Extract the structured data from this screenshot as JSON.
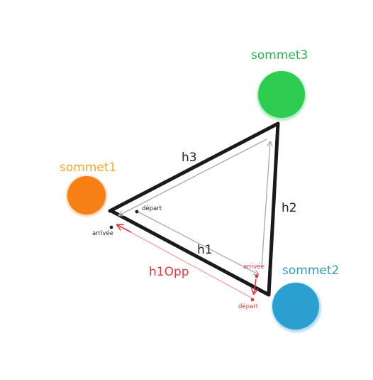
{
  "vertices": [
    {
      "id": "sommet1",
      "label": "sommet1",
      "color": "#f77f14",
      "label_color": "#f5a623"
    },
    {
      "id": "sommet2",
      "label": "sommet2",
      "color": "#2a9fd0",
      "label_color": "#2a9fb8"
    },
    {
      "id": "sommet3",
      "label": "sommet3",
      "color": "#2fcc52",
      "label_color": "#2fb04a"
    }
  ],
  "edges": [
    {
      "id": "h1",
      "label": "h1"
    },
    {
      "id": "h2",
      "label": "h2"
    },
    {
      "id": "h3",
      "label": "h3"
    },
    {
      "id": "h1Opp",
      "label": "h1Opp",
      "color": "#e23a3a"
    }
  ],
  "markers": {
    "start_black": "départ",
    "end_black": "arrivée",
    "start_red": "départ",
    "end_red": "arrivée"
  },
  "colors": {
    "edge": "#1a1a1a",
    "halfedge": "#a8a8a8",
    "opposite": "#e23a3a",
    "opposite_light": "#f2a5a5"
  }
}
